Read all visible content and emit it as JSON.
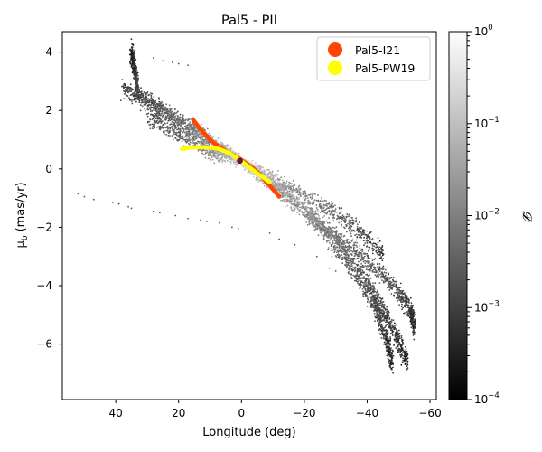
{
  "colors": {
    "background": "#ffffff",
    "axis": "#000000",
    "stream_light": "#ffffff",
    "stream_dark": "#000000",
    "orbit_i21": "#ff4500",
    "orbit_pw19": "#ffff00",
    "progenitor": "#6b0f5a"
  },
  "chart_data": {
    "type": "scatter",
    "title": "Pal5 - PII",
    "xlabel": "Longitude (deg)",
    "ylabel": "μ_b (mas/yr)",
    "xlim": [
      57,
      -62
    ],
    "ylim": [
      -7.9,
      4.7
    ],
    "x_inverted": true,
    "xticks": [
      40,
      20,
      0,
      -20,
      -40,
      -60
    ],
    "xtick_labels": [
      "40",
      "20",
      "0",
      "−20",
      "−40",
      "−60"
    ],
    "yticks": [
      4,
      2,
      0,
      -2,
      -4,
      -6
    ],
    "ytick_labels": [
      "4",
      "2",
      "0",
      "−2",
      "−4",
      "−6"
    ],
    "legend": {
      "location": "top-right",
      "entries": [
        {
          "label": "Pal5-I21",
          "color": "#ff4500"
        },
        {
          "label": "Pal5-PW19",
          "color": "#ffff00"
        }
      ]
    },
    "colorbar": {
      "label": "𝓓",
      "scale": "log",
      "min": 0.0001,
      "max": 1,
      "ticks": [
        1,
        0.1,
        0.01,
        0.001,
        0.0001
      ],
      "tick_base": "10",
      "tick_exponents": [
        "0",
        "−1",
        "−2",
        "−3",
        "−4"
      ]
    },
    "density_streams": [
      {
        "name": "core",
        "points": [
          [
            34,
            2.6
          ],
          [
            25,
            2.0
          ],
          [
            15,
            1.3
          ],
          [
            5,
            0.6
          ],
          [
            0,
            0.25
          ],
          [
            -10,
            -0.5
          ],
          [
            -20,
            -1.3
          ],
          [
            -30,
            -2.4
          ],
          [
            -38,
            -3.5
          ],
          [
            -44,
            -4.6
          ],
          [
            -49,
            -5.7
          ],
          [
            -53,
            -6.6
          ]
        ],
        "density": [
          0.001,
          0.003,
          0.01,
          0.05,
          0.6,
          0.08,
          0.05,
          0.01,
          0.003,
          0.002,
          0.001,
          0.0004
        ]
      },
      {
        "name": "upper-arm",
        "points": [
          [
            38,
            2.8
          ],
          [
            28,
            2.2
          ],
          [
            18,
            1.5
          ],
          [
            8,
            0.8
          ],
          [
            0,
            0.3
          ],
          [
            -12,
            -0.4
          ],
          [
            -25,
            -1.2
          ],
          [
            -35,
            -1.9
          ],
          [
            -45,
            -2.9
          ]
        ],
        "density": [
          0.001,
          0.003,
          0.01,
          0.04,
          0.5,
          0.04,
          0.01,
          0.003,
          0.0008
        ]
      },
      {
        "name": "lower-arm",
        "points": [
          [
            30,
            1.8
          ],
          [
            20,
            1.2
          ],
          [
            10,
            0.6
          ],
          [
            0,
            0.2
          ],
          [
            -10,
            -0.6
          ],
          [
            -22,
            -1.7
          ],
          [
            -33,
            -3.1
          ],
          [
            -42,
            -4.6
          ],
          [
            -46,
            -5.8
          ],
          [
            -48,
            -6.6
          ]
        ],
        "density": [
          0.002,
          0.005,
          0.02,
          0.3,
          0.05,
          0.02,
          0.005,
          0.002,
          0.001,
          0.0005
        ]
      },
      {
        "name": "right-fan",
        "points": [
          [
            -22,
            -1.6
          ],
          [
            -32,
            -2.4
          ],
          [
            -42,
            -3.3
          ],
          [
            -50,
            -4.2
          ],
          [
            -54,
            -4.9
          ],
          [
            -55,
            -5.4
          ]
        ],
        "density": [
          0.02,
          0.008,
          0.004,
          0.002,
          0.001,
          0.0006
        ]
      },
      {
        "name": "upper-spike",
        "points": [
          [
            33,
            2.8
          ],
          [
            34,
            3.4
          ],
          [
            35,
            4.0
          ]
        ],
        "density": [
          0.002,
          0.0008,
          0.0004
        ]
      }
    ],
    "sparse_points": [
      {
        "x": 52,
        "y": -0.85
      },
      {
        "x": 50,
        "y": -0.95
      },
      {
        "x": 47,
        "y": -1.05
      },
      {
        "x": 41,
        "y": -1.15
      },
      {
        "x": 39,
        "y": -1.2
      },
      {
        "x": 36,
        "y": -1.3
      },
      {
        "x": 35,
        "y": -1.35
      },
      {
        "x": 28,
        "y": -1.45
      },
      {
        "x": 26,
        "y": -1.5
      },
      {
        "x": 21,
        "y": -1.6
      },
      {
        "x": 17,
        "y": -1.7
      },
      {
        "x": 13,
        "y": -1.75
      },
      {
        "x": 11,
        "y": -1.8
      },
      {
        "x": 7,
        "y": -1.85
      },
      {
        "x": 3,
        "y": -2.0
      },
      {
        "x": 1,
        "y": -2.05
      },
      {
        "x": -9,
        "y": -2.2
      },
      {
        "x": -12,
        "y": -2.4
      },
      {
        "x": -17,
        "y": -2.6
      },
      {
        "x": -24,
        "y": -3.0
      },
      {
        "x": -28,
        "y": -3.4
      },
      {
        "x": -30,
        "y": -3.5
      },
      {
        "x": 28,
        "y": 3.8
      },
      {
        "x": 25,
        "y": 3.7
      },
      {
        "x": 22,
        "y": 3.65
      },
      {
        "x": 20,
        "y": 3.6
      },
      {
        "x": 17,
        "y": 3.55
      }
    ],
    "series": [
      {
        "name": "Pal5-I21",
        "color": "#ff4500",
        "x": [
          15.5,
          13,
          10,
          7,
          4,
          1,
          -2,
          -4,
          -6,
          -8,
          -10,
          -12
        ],
        "y": [
          1.7,
          1.35,
          1.0,
          0.75,
          0.55,
          0.38,
          0.15,
          0.0,
          -0.2,
          -0.45,
          -0.7,
          -0.95
        ]
      },
      {
        "name": "Pal5-PW19",
        "color": "#ffff00",
        "x": [
          19,
          16,
          13,
          10,
          7,
          4,
          1,
          -2,
          -5,
          -7,
          -9
        ],
        "y": [
          0.68,
          0.73,
          0.75,
          0.73,
          0.68,
          0.55,
          0.35,
          0.1,
          -0.15,
          -0.3,
          -0.45
        ]
      }
    ],
    "progenitor": {
      "x": 0.5,
      "y": 0.28
    }
  }
}
